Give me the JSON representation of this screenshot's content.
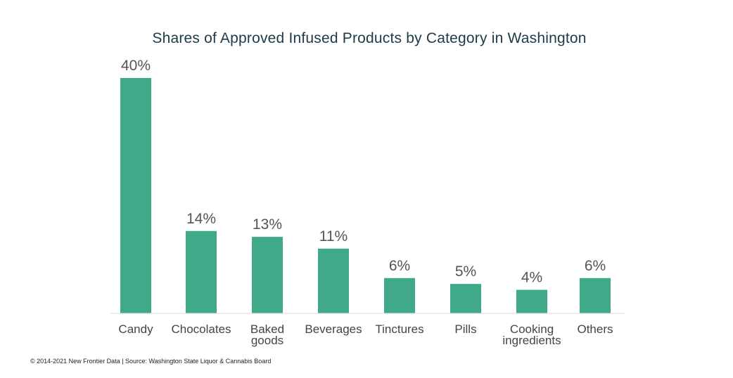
{
  "chart_data": {
    "type": "bar",
    "title": "Shares of Approved Infused Products by Category in Washington",
    "categories": [
      "Candy",
      "Chocolates",
      "Baked goods",
      "Beverages",
      "Tinctures",
      "Pills",
      "Cooking ingredients",
      "Others"
    ],
    "category_lines": [
      [
        "Candy"
      ],
      [
        "Chocolates"
      ],
      [
        "Baked",
        "goods"
      ],
      [
        "Beverages"
      ],
      [
        "Tinctures"
      ],
      [
        "Pills"
      ],
      [
        "Cooking",
        "ingredients"
      ],
      [
        "Others"
      ]
    ],
    "values": [
      40,
      14,
      13,
      11,
      6,
      5,
      4,
      6
    ],
    "value_labels": [
      "40%",
      "14%",
      "13%",
      "11%",
      "6%",
      "5%",
      "4%",
      "6%"
    ],
    "xlabel": "",
    "ylabel": "",
    "ylim": [
      0,
      40
    ],
    "grid": false,
    "bar_color": "#3fa989",
    "axis_color": "#dddddd"
  },
  "footer": "© 2014-2021  New Frontier Data | Source: Washington State Liquor & Cannabis Board"
}
